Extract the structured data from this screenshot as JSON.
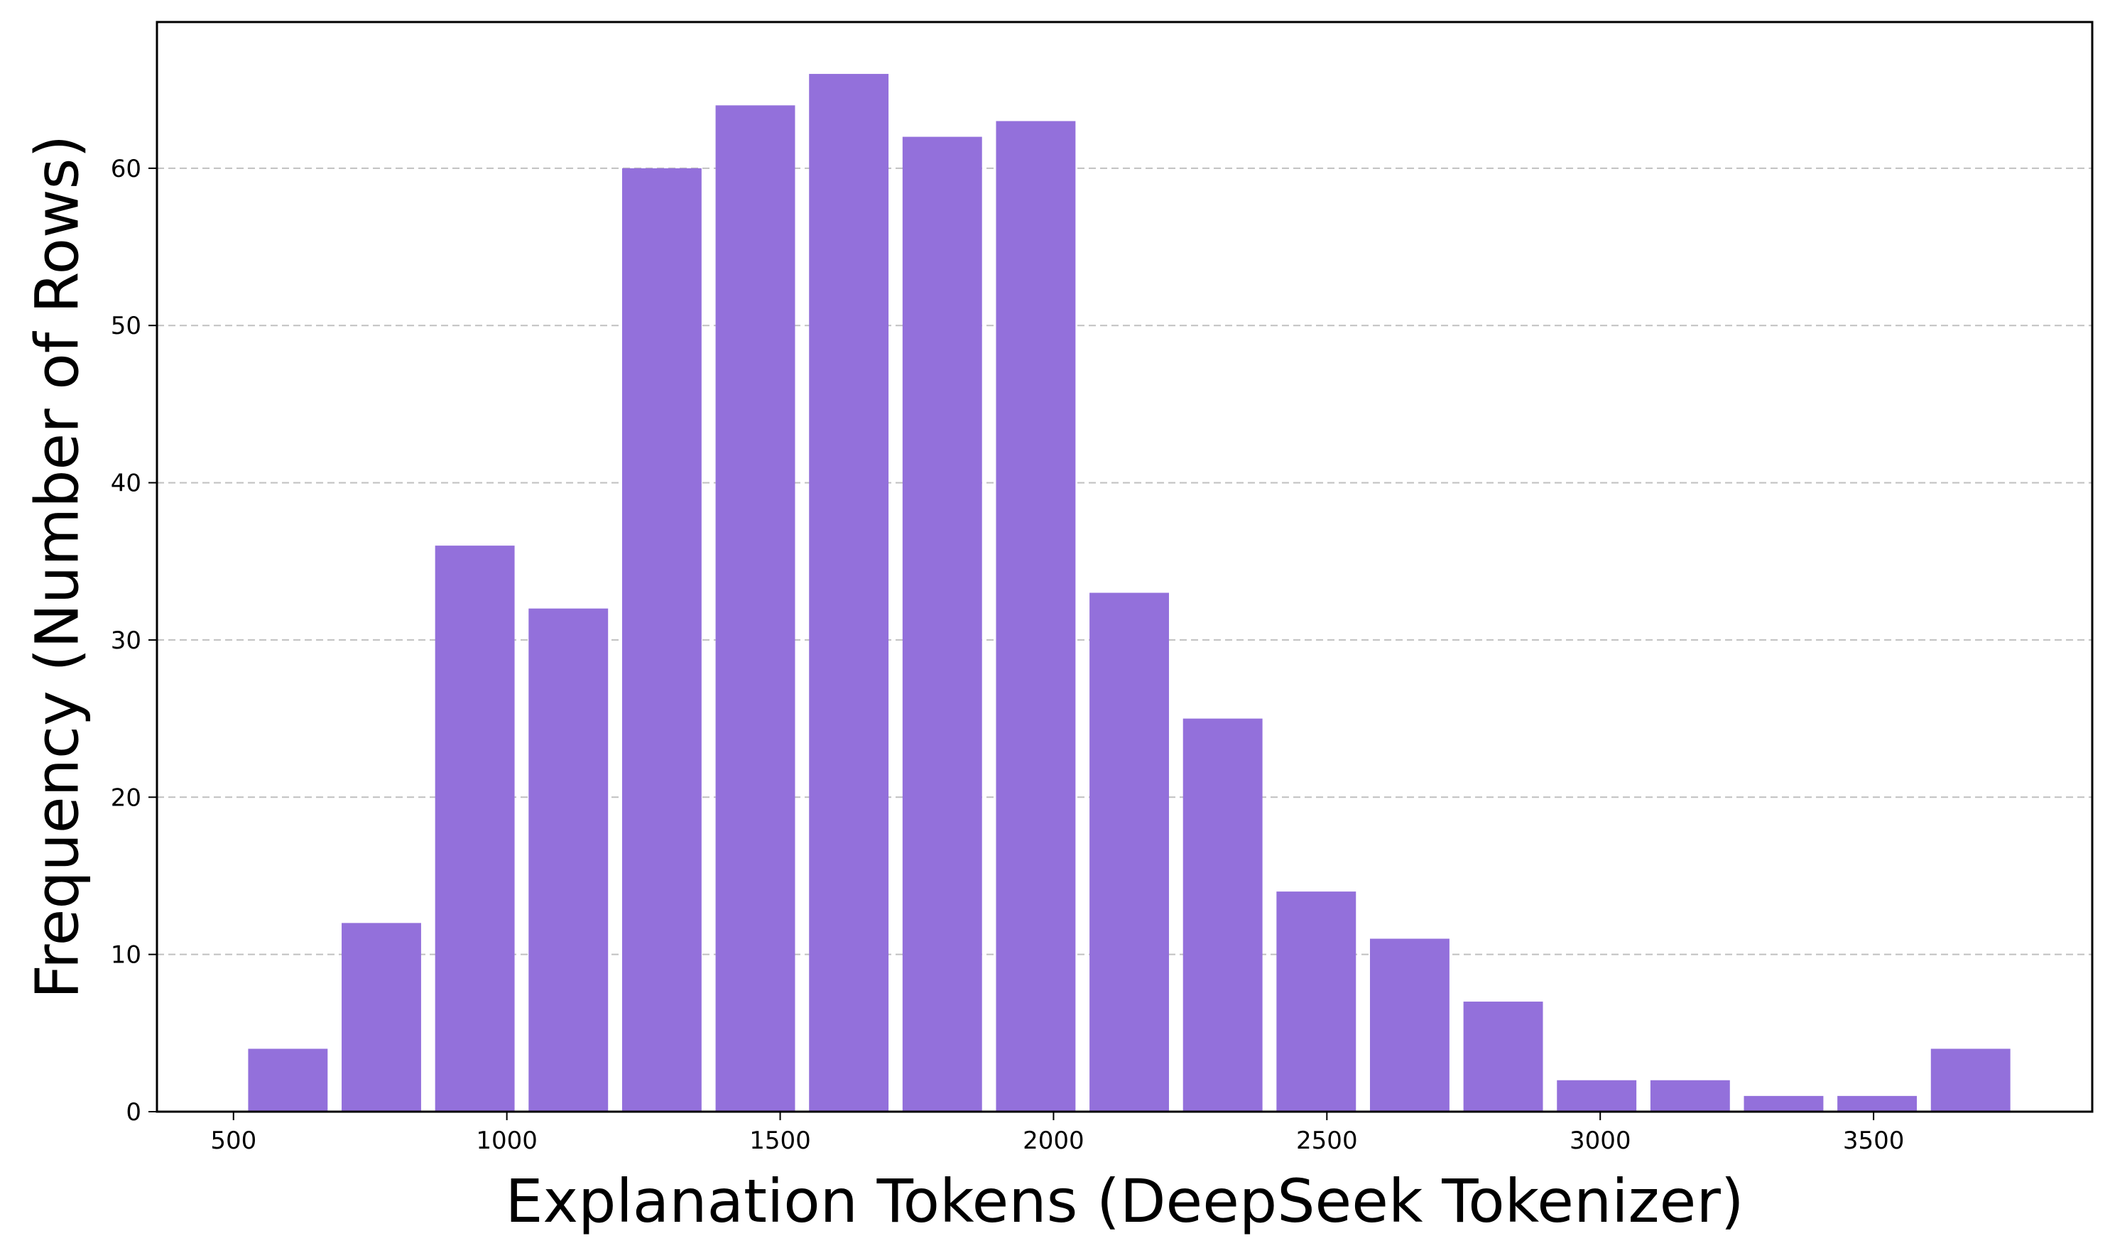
{
  "chart_data": {
    "type": "bar",
    "title": "",
    "xlabel": "Explanation Tokens (DeepSeek Tokenizer)",
    "ylabel": "Frequency (Number of Rows)",
    "bin_edges": [
      514,
      685,
      856,
      1027,
      1198,
      1369,
      1540,
      1711,
      1882,
      2053,
      2224,
      2395,
      2566,
      2737,
      2908,
      3079,
      3250,
      3421,
      3592,
      3763
    ],
    "values": [
      4,
      12,
      36,
      32,
      60,
      64,
      66,
      62,
      63,
      33,
      25,
      14,
      11,
      7,
      2,
      2,
      1,
      1,
      4
    ],
    "xlim": [
      360,
      3900
    ],
    "ylim": [
      0,
      69.3
    ],
    "xticks": [
      500,
      1000,
      1500,
      2000,
      2500,
      3000,
      3500
    ],
    "yticks": [
      0,
      10,
      20,
      30,
      40,
      50,
      60
    ],
    "grid": "y-dashed",
    "bar_color": "#9370db",
    "grid_color": "#c0c0c0"
  }
}
